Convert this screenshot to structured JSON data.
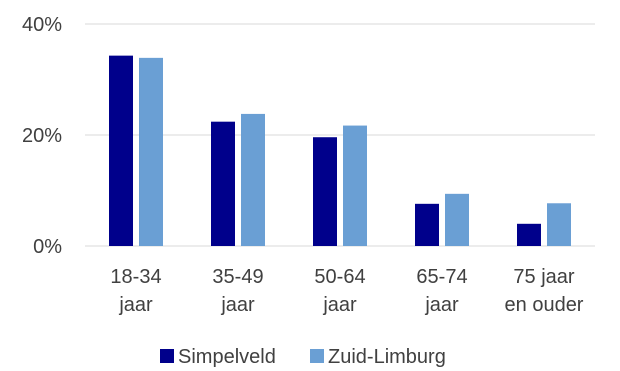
{
  "chart_data": {
    "type": "bar",
    "title": "",
    "xlabel": "",
    "ylabel": "",
    "categories": [
      [
        "18-34",
        "jaar"
      ],
      [
        "35-49",
        "jaar"
      ],
      [
        "50-64",
        "jaar"
      ],
      [
        "65-74",
        "jaar"
      ],
      [
        "75 jaar",
        "en ouder"
      ]
    ],
    "series": [
      {
        "name": "Simpelveld",
        "color": "#00008b",
        "values": [
          34.3,
          22.4,
          19.6,
          7.6,
          4.0
        ]
      },
      {
        "name": "Zuid-Limburg",
        "color": "#6a9fd4",
        "values": [
          33.9,
          23.8,
          21.7,
          9.4,
          7.7
        ]
      }
    ],
    "ylim": [
      0,
      40
    ],
    "yticks": [
      0,
      20,
      40
    ],
    "ytick_labels": [
      "0%",
      "20%",
      "40%"
    ],
    "grid": true,
    "legend_position": "bottom"
  }
}
